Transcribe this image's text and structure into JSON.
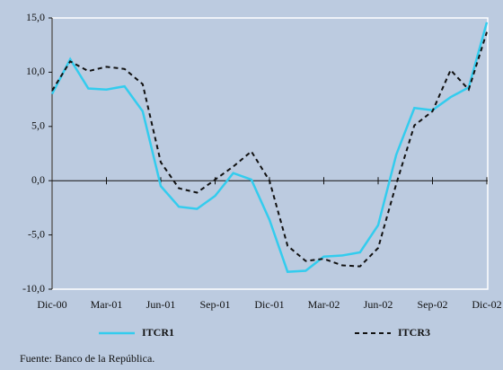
{
  "chart_data": {
    "type": "line",
    "categories": [
      "Dic-00",
      null,
      null,
      "Mar-01",
      null,
      null,
      "Jun-01",
      null,
      null,
      "Sep-01",
      null,
      null,
      "Dic-01",
      null,
      null,
      "Mar-02",
      null,
      null,
      "Jun-02",
      null,
      null,
      "Sep-02",
      null,
      null,
      "Dic-02"
    ],
    "series": [
      {
        "name": "ITCR1",
        "color": "#33ccee",
        "dashed": false,
        "values": [
          8.0,
          11.2,
          8.5,
          8.4,
          8.7,
          6.4,
          -0.5,
          -2.4,
          -2.6,
          -1.4,
          0.7,
          0.1,
          -3.6,
          -8.4,
          -8.3,
          -7.0,
          -6.9,
          -6.6,
          -4.1,
          2.4,
          6.7,
          6.5,
          7.7,
          8.6,
          14.6
        ]
      },
      {
        "name": "ITCR3",
        "color": "#111111",
        "dashed": true,
        "values": [
          8.3,
          11.0,
          10.1,
          10.5,
          10.3,
          8.9,
          1.7,
          -0.7,
          -1.1,
          0.1,
          1.3,
          2.7,
          0.0,
          -6.0,
          -7.4,
          -7.2,
          -7.8,
          -7.9,
          -6.2,
          -0.3,
          5.1,
          6.4,
          10.2,
          8.4,
          13.7
        ]
      }
    ],
    "ylim": [
      -10,
      15
    ],
    "yticks": [
      {
        "value": -10,
        "label": "-10,0"
      },
      {
        "value": -5,
        "label": "-5,0"
      },
      {
        "value": 0,
        "label": "0,0"
      },
      {
        "value": 5,
        "label": "5,0"
      },
      {
        "value": 10,
        "label": "10,0"
      },
      {
        "value": 15,
        "label": "15,0"
      }
    ],
    "source": "Fuente: Banco de la República."
  }
}
